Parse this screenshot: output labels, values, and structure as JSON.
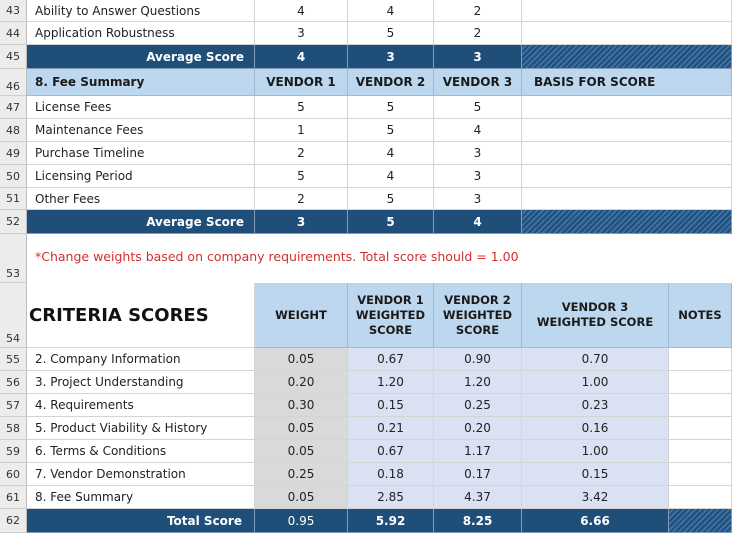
{
  "section_rows": [
    {
      "rn": "43",
      "label": "Ability to Answer Questions",
      "v": [
        "4",
        "4",
        "2"
      ]
    },
    {
      "rn": "44",
      "label": "Application Robustness",
      "v": [
        "3",
        "5",
        "2"
      ]
    }
  ],
  "avg7": {
    "rn": "45",
    "label": "Average Score",
    "v": [
      "4",
      "3",
      "3"
    ]
  },
  "fee_header": {
    "rn": "46",
    "title": "8. Fee Summary",
    "cols": [
      "VENDOR 1",
      "VENDOR 2",
      "VENDOR 3",
      "BASIS FOR SCORE"
    ]
  },
  "fee_rows": [
    {
      "rn": "47",
      "label": "License Fees",
      "v": [
        "5",
        "5",
        "5"
      ]
    },
    {
      "rn": "48",
      "label": "Maintenance Fees",
      "v": [
        "1",
        "5",
        "4"
      ]
    },
    {
      "rn": "49",
      "label": "Purchase Timeline",
      "v": [
        "2",
        "4",
        "3"
      ]
    },
    {
      "rn": "50",
      "label": "Licensing Period",
      "v": [
        "5",
        "4",
        "3"
      ]
    },
    {
      "rn": "51",
      "label": "Other Fees",
      "v": [
        "2",
        "5",
        "3"
      ]
    }
  ],
  "avg8": {
    "rn": "52",
    "label": "Average Score",
    "v": [
      "3",
      "5",
      "4"
    ]
  },
  "note": {
    "rn": "53",
    "text": "*Change weights based on company requirements. Total score should = 1.00"
  },
  "criteria_header": {
    "rn": "54",
    "title": "CRITERIA SCORES",
    "cols": [
      "WEIGHT",
      "VENDOR 1 WEIGHTED SCORE",
      "VENDOR 2 WEIGHTED SCORE",
      "VENDOR 3 WEIGHTED SCORE",
      "NOTES"
    ]
  },
  "criteria_rows": [
    {
      "rn": "55",
      "label": "2. Company Information",
      "v": [
        "0.05",
        "0.67",
        "0.90",
        "0.70"
      ]
    },
    {
      "rn": "56",
      "label": "3. Project Understanding",
      "v": [
        "0.20",
        "1.20",
        "1.20",
        "1.00"
      ]
    },
    {
      "rn": "57",
      "label": "4. Requirements",
      "v": [
        "0.30",
        "0.15",
        "0.25",
        "0.23"
      ]
    },
    {
      "rn": "58",
      "label": "5. Product Viability & History",
      "v": [
        "0.05",
        "0.21",
        "0.20",
        "0.16"
      ]
    },
    {
      "rn": "59",
      "label": "6. Terms & Conditions",
      "v": [
        "0.05",
        "0.67",
        "1.17",
        "1.00"
      ]
    },
    {
      "rn": "60",
      "label": "7. Vendor Demonstration",
      "v": [
        "0.25",
        "0.18",
        "0.17",
        "0.15"
      ]
    },
    {
      "rn": "61",
      "label": "8. Fee Summary",
      "v": [
        "0.05",
        "2.85",
        "4.37",
        "3.42"
      ]
    }
  ],
  "total": {
    "rn": "62",
    "label": "Total Score",
    "v": [
      "0.95",
      "5.92",
      "8.25",
      "6.66"
    ]
  },
  "colors": {
    "dark_blue": "#1f4e79",
    "header_blue": "#bdd7ee",
    "lavender": "#d9e1f2",
    "note_red": "#d32f2f"
  }
}
